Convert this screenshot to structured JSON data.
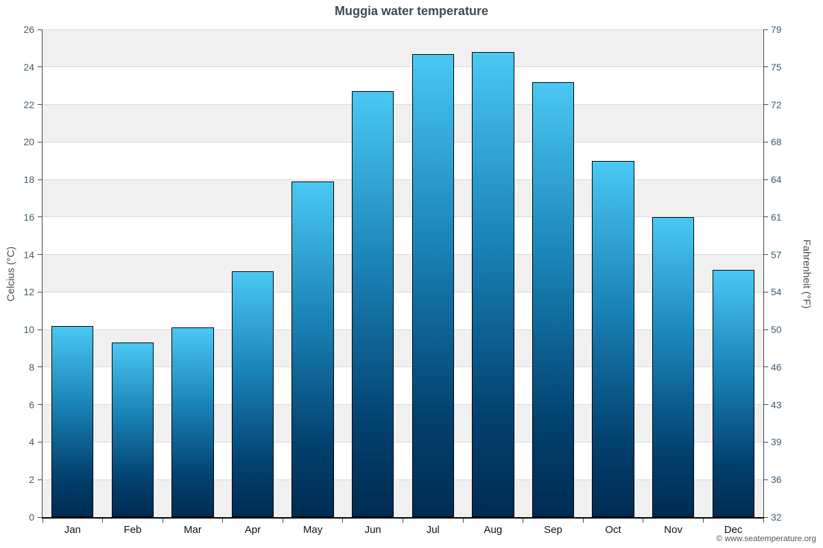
{
  "chart": {
    "credit": "© www.seatemperature.org"
  },
  "chart_data": {
    "type": "bar",
    "title": "Muggia water temperature",
    "categories": [
      "Jan",
      "Feb",
      "Mar",
      "Apr",
      "May",
      "Jun",
      "Jul",
      "Aug",
      "Sep",
      "Oct",
      "Nov",
      "Dec"
    ],
    "values": [
      10.2,
      9.3,
      10.1,
      13.1,
      17.9,
      22.7,
      24.7,
      24.8,
      23.2,
      19.0,
      16.0,
      13.2
    ],
    "xlabel": "",
    "ylabel": "Celcius (°C)",
    "ylabel_right": "Fahrenheit (°F)",
    "ylim": [
      0,
      26
    ],
    "celsius_ticks": [
      0,
      2,
      4,
      6,
      8,
      10,
      12,
      14,
      16,
      18,
      20,
      22,
      24,
      26
    ],
    "fahrenheit_ticks": [
      32,
      36,
      39,
      43,
      46,
      50,
      54,
      57,
      61,
      64,
      68,
      72,
      75,
      79
    ],
    "bar_gradient_top": "#4ac8f3",
    "bar_gradient_bottom": "#002b52",
    "band_color": "#f0f0f0",
    "grid_on": true,
    "legend": "none"
  }
}
